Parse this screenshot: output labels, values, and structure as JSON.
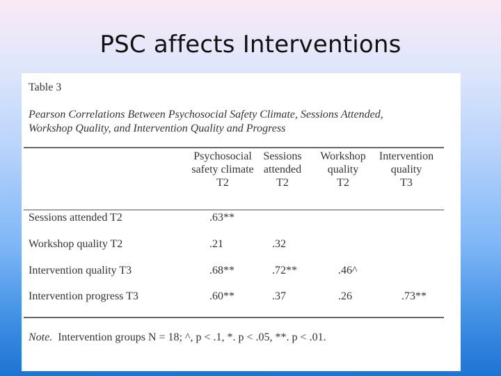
{
  "slide": {
    "title": "PSC affects Interventions"
  },
  "table": {
    "label": "Table 3",
    "caption_line1": "Pearson Correlations Between Psychosocial Safety Climate, Sessions Attended,",
    "caption_line2": "Workshop Quality, and Intervention Quality and Progress",
    "columns": [
      {
        "line1": "Psychosocial",
        "line2": "safety climate",
        "line3": "T2"
      },
      {
        "line1": "Sessions",
        "line2": "attended",
        "line3": "T2"
      },
      {
        "line1": "Workshop",
        "line2": "quality",
        "line3": "T2"
      },
      {
        "line1": "Intervention",
        "line2": "quality",
        "line3": "T3"
      }
    ],
    "rows": [
      {
        "label": "Sessions attended T2",
        "values": [
          ".63**",
          "",
          "",
          ""
        ]
      },
      {
        "label": "Workshop quality T2",
        "values": [
          ".21",
          ".32",
          "",
          ""
        ]
      },
      {
        "label": "Intervention quality T3",
        "values": [
          ".68**",
          ".72**",
          ".46^",
          ""
        ]
      },
      {
        "label": "Intervention progress T3",
        "values": [
          ".60**",
          ".37",
          ".26",
          ".73**"
        ]
      }
    ],
    "note": {
      "prefix": "Note.",
      "text": "Intervention groups N = 18;  ^, p < .1, *. p < .05, **. p < .01."
    }
  }
}
